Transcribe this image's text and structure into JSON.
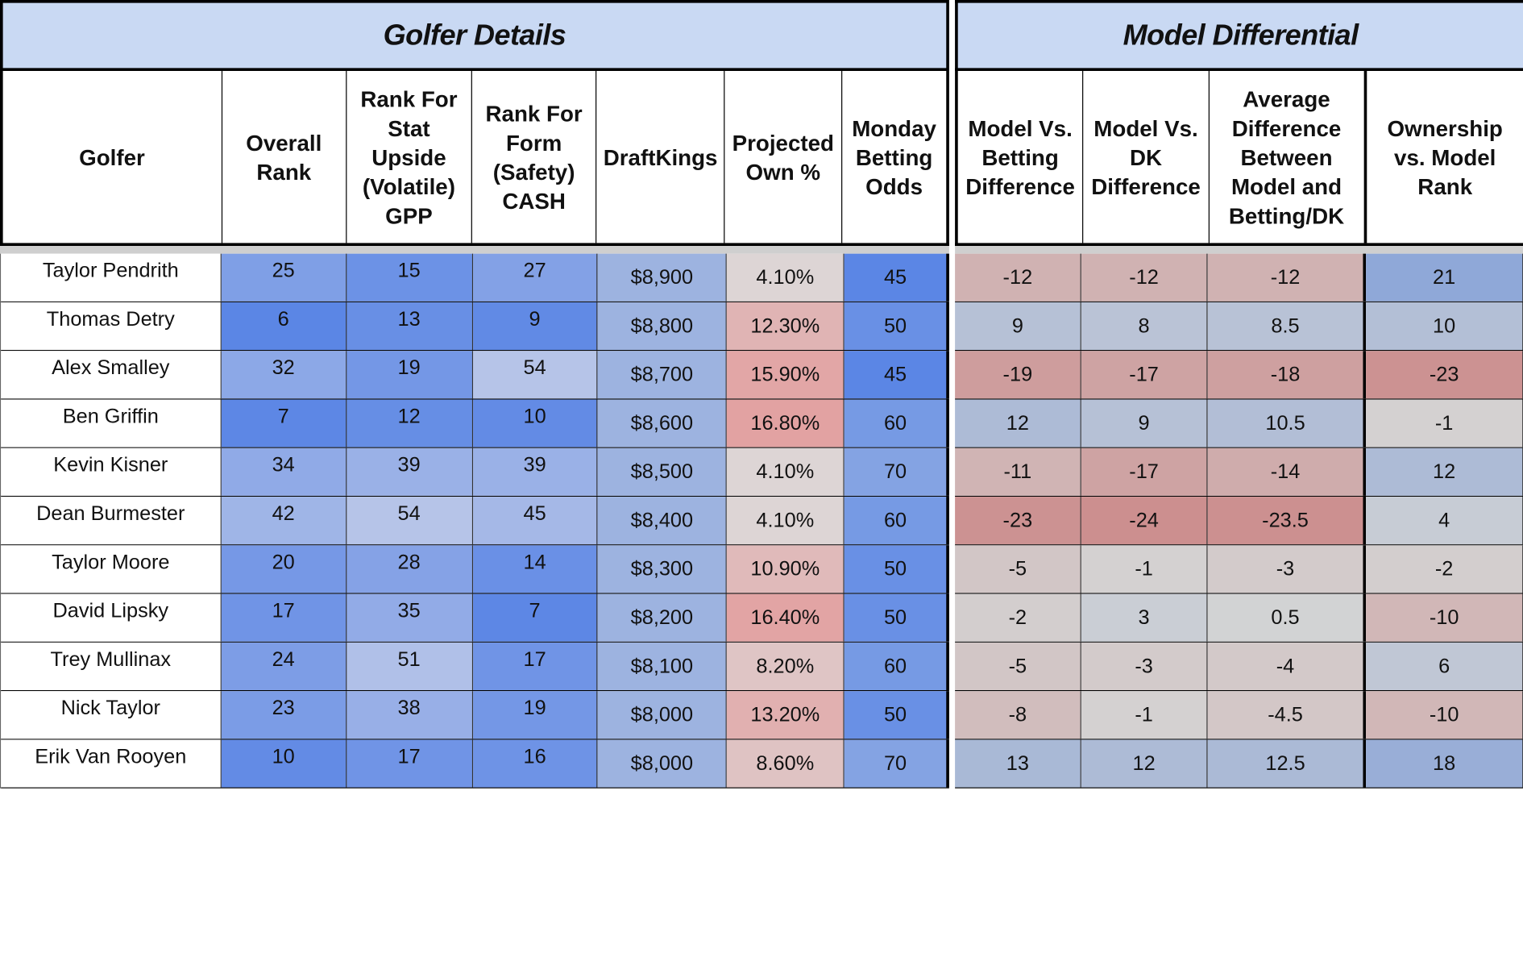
{
  "groups": {
    "left": "Golfer Details",
    "right": "Model Differential"
  },
  "headers": {
    "left": [
      "Golfer",
      "Overall Rank",
      "Rank For Stat Upside (Volatile) GPP",
      "Rank For Form (Safety) CASH",
      "DraftKings",
      "Projected Own %",
      "Monday Betting Odds"
    ],
    "right": [
      "Model Vs. Betting Difference",
      "Model Vs. DK Difference",
      "Average Difference Between Model and Betting/DK",
      "Ownership vs. Model Rank"
    ]
  },
  "rows": [
    {
      "golfer": "Taylor Pendrith",
      "overall": "25",
      "upside": "15",
      "form": "27",
      "dk": "$8,900",
      "own": "4.10%",
      "odds": "45",
      "mvb": "-12",
      "mvdk": "-12",
      "avg": "-12",
      "ovm": "21"
    },
    {
      "golfer": "Thomas Detry",
      "overall": "6",
      "upside": "13",
      "form": "9",
      "dk": "$8,800",
      "own": "12.30%",
      "odds": "50",
      "mvb": "9",
      "mvdk": "8",
      "avg": "8.5",
      "ovm": "10"
    },
    {
      "golfer": "Alex Smalley",
      "overall": "32",
      "upside": "19",
      "form": "54",
      "dk": "$8,700",
      "own": "15.90%",
      "odds": "45",
      "mvb": "-19",
      "mvdk": "-17",
      "avg": "-18",
      "ovm": "-23"
    },
    {
      "golfer": "Ben Griffin",
      "overall": "7",
      "upside": "12",
      "form": "10",
      "dk": "$8,600",
      "own": "16.80%",
      "odds": "60",
      "mvb": "12",
      "mvdk": "9",
      "avg": "10.5",
      "ovm": "-1"
    },
    {
      "golfer": "Kevin Kisner",
      "overall": "34",
      "upside": "39",
      "form": "39",
      "dk": "$8,500",
      "own": "4.10%",
      "odds": "70",
      "mvb": "-11",
      "mvdk": "-17",
      "avg": "-14",
      "ovm": "12"
    },
    {
      "golfer": "Dean Burmester",
      "overall": "42",
      "upside": "54",
      "form": "45",
      "dk": "$8,400",
      "own": "4.10%",
      "odds": "60",
      "mvb": "-23",
      "mvdk": "-24",
      "avg": "-23.5",
      "ovm": "4"
    },
    {
      "golfer": "Taylor Moore",
      "overall": "20",
      "upside": "28",
      "form": "14",
      "dk": "$8,300",
      "own": "10.90%",
      "odds": "50",
      "mvb": "-5",
      "mvdk": "-1",
      "avg": "-3",
      "ovm": "-2"
    },
    {
      "golfer": "David Lipsky",
      "overall": "17",
      "upside": "35",
      "form": "7",
      "dk": "$8,200",
      "own": "16.40%",
      "odds": "50",
      "mvb": "-2",
      "mvdk": "3",
      "avg": "0.5",
      "ovm": "-10"
    },
    {
      "golfer": "Trey Mullinax",
      "overall": "24",
      "upside": "51",
      "form": "17",
      "dk": "$8,100",
      "own": "8.20%",
      "odds": "60",
      "mvb": "-5",
      "mvdk": "-3",
      "avg": "-4",
      "ovm": "6"
    },
    {
      "golfer": "Nick Taylor",
      "overall": "23",
      "upside": "38",
      "form": "19",
      "dk": "$8,000",
      "own": "13.20%",
      "odds": "50",
      "mvb": "-8",
      "mvdk": "-1",
      "avg": "-4.5",
      "ovm": "-10"
    },
    {
      "golfer": "Erik Van Rooyen",
      "overall": "10",
      "upside": "17",
      "form": "16",
      "dk": "$8,000",
      "own": "8.60%",
      "odds": "70",
      "mvb": "13",
      "mvdk": "12",
      "avg": "12.5",
      "ovm": "18"
    }
  ],
  "colors": {
    "rank_best": "#5b86e5",
    "rank_worst": "#b6c4e8",
    "dk_fill": "#9db3e0",
    "own_low": "#ddd5d5",
    "own_high": "#e2a2a2",
    "odds_45": "#5b86e5",
    "odds_50": "#6990e5",
    "odds_60": "#769ae4",
    "odds_70": "#84a3e3",
    "diff_negative": "#cc8f8f",
    "diff_neutral": "#d4d4d4",
    "diff_positive": "#8fa8d8",
    "header_fill": "#c9d9f3"
  }
}
